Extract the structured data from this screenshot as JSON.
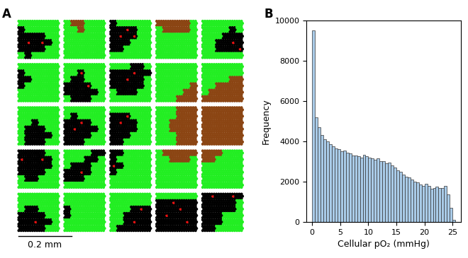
{
  "chart_data": [
    {
      "type": "cell_map",
      "panel": "A",
      "scale_bar": "0.2 mm",
      "colors": [
        "#22ee22",
        "#000000",
        "#8b4513",
        "#ee1111"
      ],
      "tiles": [
        [
          [
            0,
            0,
            0,
            0,
            0,
            0
          ],
          [
            1,
            0,
            0,
            0,
            0,
            0
          ],
          [
            1,
            1,
            1,
            1,
            0,
            0
          ],
          [
            1,
            3,
            1,
            3,
            1,
            0
          ],
          [
            1,
            1,
            1,
            1,
            0,
            0
          ],
          [
            0,
            1,
            0,
            0,
            0,
            0
          ]
        ],
        [
          [
            0,
            2,
            2,
            0,
            0,
            0
          ],
          [
            0,
            0,
            2,
            0,
            0,
            0
          ],
          [
            0,
            0,
            0,
            0,
            0,
            0
          ],
          [
            0,
            0,
            0,
            0,
            0,
            0
          ],
          [
            0,
            0,
            0,
            0,
            0,
            0
          ],
          [
            0,
            0,
            0,
            0,
            0,
            0
          ]
        ],
        [
          [
            1,
            0,
            0,
            0,
            0,
            0
          ],
          [
            1,
            1,
            3,
            1,
            0,
            0
          ],
          [
            1,
            3,
            1,
            3,
            0,
            0
          ],
          [
            1,
            1,
            1,
            0,
            0,
            0
          ],
          [
            1,
            1,
            0,
            0,
            0,
            0
          ],
          [
            0,
            0,
            0,
            0,
            0,
            0
          ]
        ],
        [
          [
            2,
            2,
            2,
            2,
            2,
            0
          ],
          [
            0,
            2,
            2,
            2,
            2,
            0
          ],
          [
            0,
            0,
            0,
            0,
            0,
            0
          ],
          [
            0,
            0,
            0,
            0,
            0,
            0
          ],
          [
            0,
            0,
            0,
            0,
            0,
            0
          ],
          [
            0,
            0,
            0,
            0,
            0,
            0
          ]
        ],
        [
          [
            0,
            0,
            0,
            0,
            0,
            0
          ],
          [
            0,
            0,
            0,
            0,
            1,
            0
          ],
          [
            0,
            0,
            0,
            1,
            1,
            1
          ],
          [
            0,
            0,
            1,
            1,
            3,
            1
          ],
          [
            0,
            0,
            1,
            1,
            1,
            3
          ],
          [
            0,
            0,
            0,
            0,
            0,
            0
          ]
        ],
        [
          [
            0,
            0,
            0,
            0,
            0,
            0
          ],
          [
            1,
            0,
            0,
            0,
            0,
            0
          ],
          [
            1,
            1,
            0,
            0,
            0,
            0
          ],
          [
            1,
            0,
            0,
            0,
            0,
            0
          ],
          [
            0,
            0,
            0,
            0,
            0,
            0
          ],
          [
            0,
            0,
            0,
            0,
            0,
            0
          ]
        ],
        [
          [
            0,
            0,
            0,
            0,
            0,
            0
          ],
          [
            0,
            0,
            3,
            0,
            0,
            0
          ],
          [
            0,
            1,
            1,
            0,
            0,
            0
          ],
          [
            1,
            1,
            1,
            3,
            0,
            0
          ],
          [
            1,
            1,
            1,
            1,
            1,
            0
          ],
          [
            0,
            1,
            1,
            1,
            0,
            0
          ]
        ],
        [
          [
            0,
            0,
            0,
            1,
            1,
            0
          ],
          [
            1,
            1,
            1,
            3,
            1,
            1
          ],
          [
            1,
            1,
            3,
            1,
            1,
            0
          ],
          [
            1,
            1,
            1,
            1,
            1,
            0
          ],
          [
            0,
            1,
            1,
            1,
            0,
            0
          ],
          [
            0,
            0,
            0,
            0,
            0,
            0
          ]
        ],
        [
          [
            0,
            0,
            0,
            0,
            0,
            0
          ],
          [
            0,
            0,
            0,
            0,
            0,
            0
          ],
          [
            0,
            0,
            0,
            0,
            0,
            0
          ],
          [
            0,
            0,
            0,
            0,
            0,
            2
          ],
          [
            0,
            0,
            0,
            0,
            2,
            2
          ],
          [
            0,
            0,
            0,
            2,
            2,
            2
          ]
        ],
        [
          [
            0,
            0,
            0,
            0,
            0,
            0
          ],
          [
            0,
            0,
            0,
            0,
            0,
            0
          ],
          [
            0,
            0,
            0,
            0,
            2,
            2
          ],
          [
            0,
            0,
            2,
            2,
            2,
            2
          ],
          [
            0,
            2,
            2,
            2,
            2,
            2
          ],
          [
            2,
            2,
            2,
            2,
            2,
            2
          ]
        ],
        [
          [
            0,
            0,
            0,
            0,
            0,
            0
          ],
          [
            0,
            0,
            0,
            0,
            0,
            0
          ],
          [
            0,
            0,
            1,
            0,
            0,
            0
          ],
          [
            0,
            1,
            1,
            1,
            0,
            0
          ],
          [
            0,
            1,
            1,
            1,
            1,
            0
          ],
          [
            0,
            1,
            1,
            1,
            0,
            0
          ]
        ],
        [
          [
            0,
            0,
            0,
            0,
            0,
            0
          ],
          [
            0,
            1,
            0,
            0,
            0,
            0
          ],
          [
            1,
            1,
            3,
            1,
            0,
            0
          ],
          [
            1,
            3,
            1,
            1,
            1,
            0
          ],
          [
            1,
            1,
            1,
            1,
            0,
            0
          ],
          [
            1,
            1,
            1,
            0,
            0,
            0
          ]
        ],
        [
          [
            0,
            0,
            0,
            0,
            0,
            0
          ],
          [
            1,
            1,
            3,
            0,
            0,
            0
          ],
          [
            1,
            3,
            1,
            1,
            0,
            0
          ],
          [
            1,
            1,
            1,
            1,
            0,
            0
          ],
          [
            1,
            1,
            1,
            0,
            0,
            0
          ],
          [
            1,
            1,
            0,
            0,
            0,
            0
          ]
        ],
        [
          [
            0,
            0,
            0,
            2,
            2,
            2
          ],
          [
            0,
            0,
            0,
            2,
            2,
            2
          ],
          [
            0,
            0,
            2,
            2,
            2,
            2
          ],
          [
            0,
            0,
            2,
            2,
            2,
            2
          ],
          [
            0,
            0,
            0,
            2,
            2,
            2
          ],
          [
            0,
            0,
            0,
            2,
            2,
            2
          ]
        ],
        [
          [
            2,
            2,
            2,
            2,
            2,
            2
          ],
          [
            2,
            2,
            2,
            2,
            2,
            2
          ],
          [
            2,
            2,
            2,
            2,
            2,
            2
          ],
          [
            2,
            2,
            2,
            2,
            2,
            2
          ],
          [
            2,
            2,
            2,
            2,
            2,
            2
          ],
          [
            2,
            2,
            2,
            2,
            2,
            2
          ]
        ],
        [
          [
            1,
            1,
            1,
            1,
            0,
            0
          ],
          [
            3,
            1,
            1,
            3,
            1,
            0
          ],
          [
            1,
            1,
            1,
            1,
            1,
            0
          ],
          [
            1,
            1,
            1,
            1,
            0,
            0
          ],
          [
            0,
            1,
            1,
            0,
            0,
            0
          ],
          [
            0,
            0,
            0,
            0,
            0,
            0
          ]
        ],
        [
          [
            0,
            0,
            0,
            0,
            1,
            1
          ],
          [
            0,
            0,
            0,
            1,
            1,
            0
          ],
          [
            0,
            1,
            1,
            1,
            0,
            0
          ],
          [
            1,
            1,
            3,
            1,
            0,
            0
          ],
          [
            1,
            1,
            1,
            0,
            0,
            0
          ],
          [
            0,
            0,
            0,
            0,
            0,
            0
          ]
        ],
        [
          [
            1,
            1,
            0,
            0,
            0,
            0
          ],
          [
            1,
            0,
            0,
            0,
            0,
            0
          ],
          [
            3,
            1,
            0,
            0,
            0,
            0
          ],
          [
            1,
            0,
            0,
            0,
            0,
            0
          ],
          [
            0,
            0,
            0,
            0,
            0,
            0
          ],
          [
            0,
            0,
            0,
            0,
            0,
            0
          ]
        ],
        [
          [
            0,
            2,
            2,
            2,
            2,
            2
          ],
          [
            0,
            0,
            2,
            2,
            2,
            0
          ],
          [
            0,
            0,
            0,
            0,
            0,
            0
          ],
          [
            0,
            0,
            0,
            0,
            0,
            0
          ],
          [
            0,
            0,
            0,
            0,
            0,
            0
          ],
          [
            0,
            0,
            0,
            0,
            0,
            0
          ]
        ],
        [
          [
            2,
            2,
            2,
            0,
            0,
            0
          ],
          [
            2,
            2,
            0,
            0,
            0,
            0
          ],
          [
            0,
            0,
            0,
            0,
            0,
            0
          ],
          [
            0,
            0,
            0,
            0,
            0,
            0
          ],
          [
            0,
            0,
            0,
            0,
            0,
            0
          ],
          [
            0,
            0,
            0,
            0,
            0,
            0
          ]
        ],
        [
          [
            0,
            0,
            0,
            0,
            0,
            0
          ],
          [
            0,
            0,
            0,
            0,
            0,
            0
          ],
          [
            0,
            1,
            1,
            0,
            0,
            0
          ],
          [
            1,
            1,
            1,
            1,
            0,
            0
          ],
          [
            1,
            1,
            3,
            1,
            1,
            0
          ],
          [
            1,
            1,
            1,
            1,
            0,
            0
          ]
        ],
        [
          [
            0,
            0,
            0,
            0,
            0,
            0
          ],
          [
            0,
            0,
            0,
            0,
            0,
            0
          ],
          [
            1,
            0,
            0,
            0,
            0,
            0
          ],
          [
            1,
            0,
            0,
            0,
            0,
            0
          ],
          [
            0,
            0,
            0,
            0,
            0,
            0
          ],
          [
            0,
            0,
            0,
            0,
            0,
            0
          ]
        ],
        [
          [
            0,
            0,
            0,
            0,
            0,
            0
          ],
          [
            0,
            0,
            0,
            0,
            0,
            0
          ],
          [
            0,
            0,
            0,
            1,
            3,
            1
          ],
          [
            0,
            0,
            1,
            1,
            1,
            1
          ],
          [
            0,
            0,
            1,
            3,
            1,
            1
          ],
          [
            0,
            1,
            1,
            1,
            1,
            1
          ]
        ],
        [
          [
            0,
            0,
            0,
            0,
            0,
            0
          ],
          [
            1,
            1,
            3,
            1,
            1,
            1
          ],
          [
            1,
            1,
            1,
            3,
            1,
            1
          ],
          [
            1,
            3,
            1,
            1,
            1,
            1
          ],
          [
            1,
            1,
            1,
            1,
            3,
            1
          ],
          [
            1,
            1,
            1,
            1,
            1,
            1
          ]
        ],
        [
          [
            1,
            3,
            1,
            1,
            3,
            1
          ],
          [
            1,
            1,
            1,
            1,
            1,
            0
          ],
          [
            1,
            1,
            1,
            1,
            1,
            0
          ],
          [
            1,
            1,
            1,
            0,
            0,
            0
          ],
          [
            1,
            1,
            1,
            0,
            0,
            0
          ],
          [
            1,
            1,
            0,
            0,
            0,
            0
          ]
        ]
      ]
    },
    {
      "type": "histogram",
      "panel": "B",
      "x_label": "Cellular pO₂ (mmHg)",
      "y_label": "Frequency",
      "color": "#a9cbe8",
      "bins": [
        0,
        0.5,
        1,
        1.5,
        2,
        2.5,
        3,
        3.5,
        4,
        4.5,
        5,
        5.5,
        6,
        6.5,
        7,
        7.5,
        8,
        8.5,
        9,
        9.5,
        10,
        10.5,
        11,
        11.5,
        12,
        12.5,
        13,
        13.5,
        14,
        14.5,
        15,
        15.5,
        16,
        16.5,
        17,
        17.5,
        18,
        18.5,
        19,
        19.5,
        20,
        20.5,
        21,
        21.5,
        22,
        22.5,
        23,
        23.5,
        24,
        24.5,
        25,
        25.5
      ],
      "values": [
        9500,
        5200,
        4700,
        4300,
        4100,
        4000,
        3850,
        3750,
        3650,
        3600,
        3500,
        3550,
        3450,
        3400,
        3300,
        3300,
        3250,
        3200,
        3350,
        3250,
        3200,
        3150,
        3100,
        3150,
        3000,
        3000,
        2900,
        2950,
        2800,
        2700,
        2550,
        2500,
        2350,
        2250,
        2200,
        2100,
        2000,
        1950,
        1850,
        1800,
        1900,
        1800,
        1650,
        1700,
        1750,
        1700,
        1700,
        1800,
        1350,
        700,
        100
      ],
      "xlim": [
        -1,
        26.5
      ],
      "xticks": [
        0,
        5,
        10,
        15,
        20,
        25
      ],
      "ylim": [
        0,
        10000
      ],
      "yticks": [
        0,
        2000,
        4000,
        6000,
        8000,
        10000
      ]
    }
  ]
}
